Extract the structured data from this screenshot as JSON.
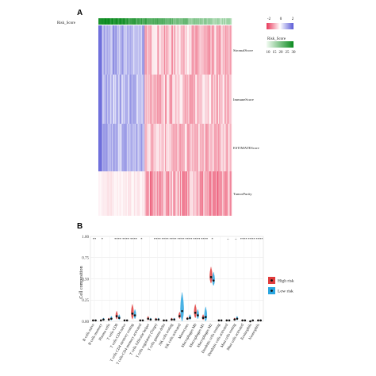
{
  "chart_data": [
    {
      "type": "heatmap",
      "panel_label": "A",
      "annotation_row_label": "Risk_Score",
      "rows": [
        "StromalScore",
        "ImmuneScore",
        "ESTIMATEScore",
        "TumorPurity"
      ],
      "legend": {
        "value_title": "",
        "value_ticks": [
          "-2",
          "0",
          "2"
        ],
        "value_colors": [
          "#e8385a",
          "#ffffff",
          "#5a5ad6"
        ],
        "risk_title": "Risk_Score",
        "risk_ticks": [
          "10",
          "15",
          "20",
          "25",
          "30"
        ],
        "risk_colors": [
          "#f2fbf2",
          "#0a8a1e"
        ]
      },
      "color_low": "#e8385a",
      "color_mid": "#ffffff",
      "color_high": "#5a5ad6"
    },
    {
      "type": "violin",
      "panel_label": "B",
      "ylabel": "Cell composition",
      "xlabel": "",
      "ylim": [
        0,
        1.0
      ],
      "yticks": [
        "0.00",
        "0.25",
        "0.50",
        "0.75",
        "1.00"
      ],
      "categories": [
        "B cells naive",
        "B cells memory",
        "Plasma cells",
        "T cells CD8",
        "T cells CD4 naive",
        "T cells CD4 memory resting",
        "T cells CD4 memory activated",
        "T cells follicular helper",
        "T cells regulatory (Tregs)",
        "T cells gamma delta",
        "NK cells resting",
        "NK cells activated",
        "Monocytes",
        "Macrophages M0",
        "Macrophages M1",
        "Macrophages M2",
        "Dendritic cells resting",
        "Dendritic cells activated",
        "Mast cells resting",
        "Mast cells activated",
        "Eosinophils",
        "Neutrophils"
      ],
      "significance": [
        "**",
        "*",
        "",
        "****",
        "****",
        "****",
        "*",
        "",
        "****",
        "****",
        "****",
        "****",
        "****",
        "****",
        "****",
        "*",
        "",
        "--",
        "--",
        "****",
        "****",
        "****"
      ],
      "series": [
        {
          "name": "High risk",
          "color": "#e03c3c",
          "values": [
            0.01,
            0.01,
            0.02,
            0.06,
            0.01,
            0.09,
            0.01,
            0.03,
            0.02,
            0.01,
            0.02,
            0.06,
            0.03,
            0.1,
            0.04,
            0.52,
            0.01,
            0.01,
            0.02,
            0.01,
            0.0,
            0.01
          ],
          "spread": [
            0.01,
            0.01,
            0.02,
            0.06,
            0.01,
            0.11,
            0.01,
            0.03,
            0.02,
            0.01,
            0.02,
            0.05,
            0.02,
            0.1,
            0.04,
            0.12,
            0.01,
            0.01,
            0.02,
            0.01,
            0.0,
            0.01
          ]
        },
        {
          "name": "Low risk",
          "color": "#2aa6e0",
          "values": [
            0.01,
            0.02,
            0.03,
            0.04,
            0.01,
            0.07,
            0.01,
            0.02,
            0.02,
            0.01,
            0.02,
            0.12,
            0.04,
            0.07,
            0.05,
            0.48,
            0.01,
            0.01,
            0.03,
            0.01,
            0.01,
            0.01
          ],
          "spread": [
            0.01,
            0.02,
            0.03,
            0.04,
            0.01,
            0.07,
            0.01,
            0.02,
            0.02,
            0.01,
            0.02,
            0.22,
            0.04,
            0.07,
            0.12,
            0.1,
            0.01,
            0.01,
            0.03,
            0.01,
            0.01,
            0.01
          ]
        }
      ],
      "grid": true,
      "legend_position": "right"
    }
  ]
}
